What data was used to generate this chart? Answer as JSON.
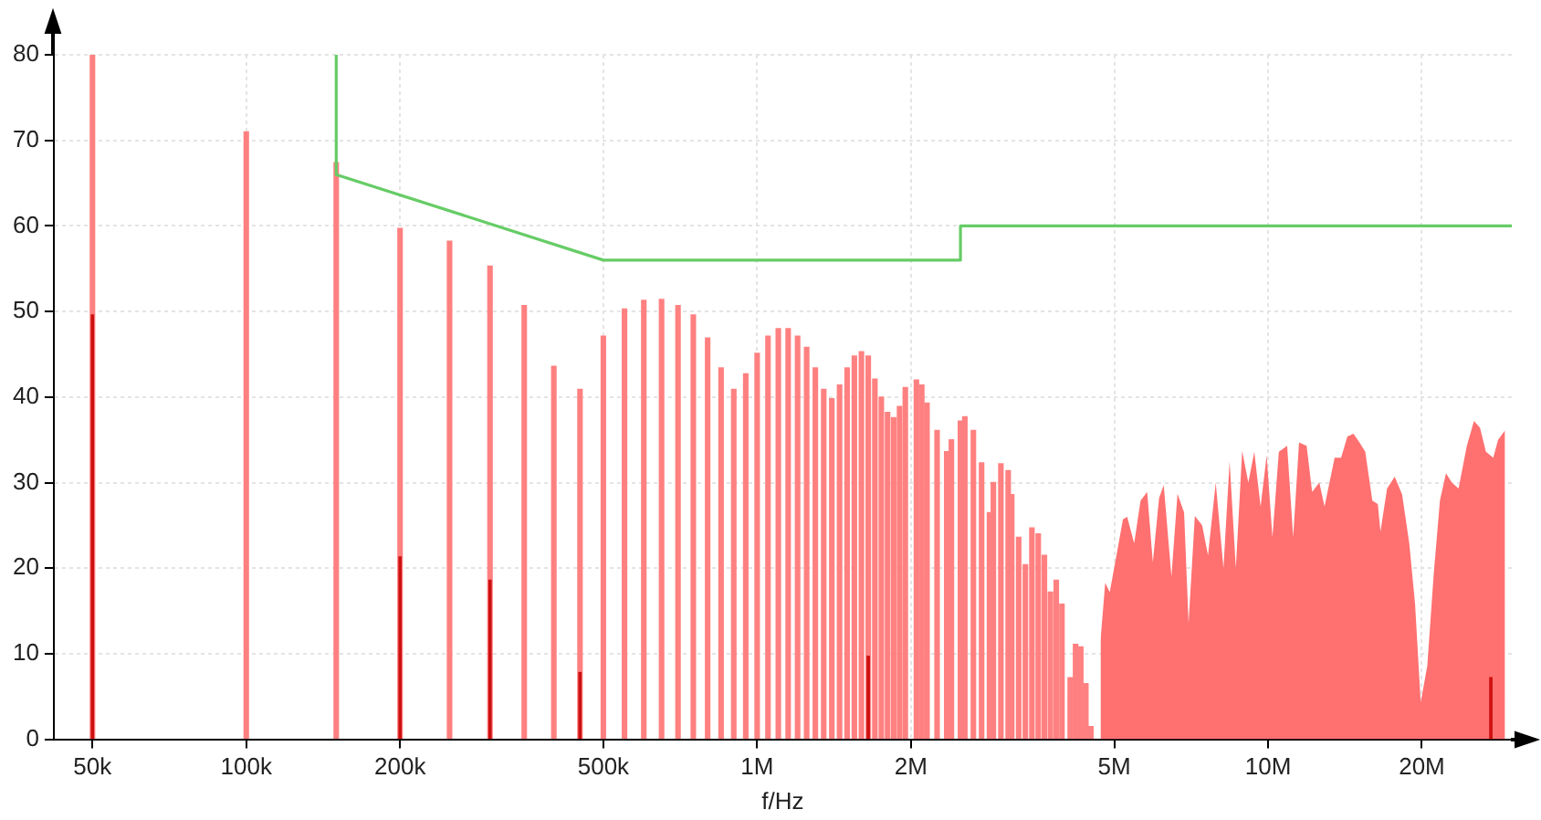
{
  "chart_data": {
    "type": "bar",
    "xlabel": "f/Hz",
    "log": "x",
    "xlim": [
      42000,
      30000000
    ],
    "xticks": [
      {
        "value": 50000,
        "label": "50k"
      },
      {
        "value": 100000,
        "label": "100k"
      },
      {
        "value": 200000,
        "label": "200k"
      },
      {
        "value": 500000,
        "label": "500k"
      },
      {
        "value": 1000000,
        "label": "1M"
      },
      {
        "value": 2000000,
        "label": "2M"
      },
      {
        "value": 5000000,
        "label": "5M"
      },
      {
        "value": 10000000,
        "label": "10M"
      },
      {
        "value": 20000000,
        "label": "20M"
      }
    ],
    "ylim": [
      0,
      80
    ],
    "yticks": [
      0,
      10,
      20,
      30,
      40,
      50,
      60,
      70,
      80
    ],
    "grid": true,
    "legend": false,
    "series": [
      {
        "color": "#ff8080",
        "x": [
          50000,
          100000,
          150000,
          200000,
          250000,
          300000,
          350000,
          400000,
          450000,
          500000,
          550000,
          600000,
          650000,
          700000,
          750000,
          800000,
          850000,
          900000,
          950000,
          1000000,
          1050000,
          1100000,
          1150000,
          1200000,
          1250000,
          1300000,
          1350000,
          1400000,
          1450000,
          1500000,
          1550000,
          1600000,
          1650000,
          1700000,
          1750000,
          1800000,
          1850000,
          1900000,
          1950000,
          2050000,
          2100000,
          2150000,
          2250000,
          2350000,
          2400000,
          2500000,
          2550000,
          2650000,
          2750000,
          2850000,
          2900000,
          3000000,
          3100000,
          3150000,
          3250000,
          3350000,
          3450000,
          3550000,
          3650000,
          3750000,
          3850000,
          3950000,
          4100000,
          4200000,
          4300000,
          4400000,
          4500000
        ],
        "values": [
          80,
          71,
          67.4,
          59.7,
          58.2,
          55.3,
          50.7,
          43.6,
          40.9,
          47.1,
          50.3,
          51.3,
          51.4,
          50.7,
          49.6,
          46.9,
          43.4,
          40.9,
          42.7,
          45.1,
          47.1,
          48,
          48,
          47.1,
          45.8,
          43.4,
          40.9,
          39.8,
          41.4,
          43.4,
          44.8,
          45.3,
          44.8,
          42.1,
          40,
          38.2,
          37.6,
          38.9,
          41.1,
          42,
          41.4,
          39.3,
          36.1,
          33.6,
          35,
          37.2,
          37.7,
          36.1,
          32.3,
          26.5,
          30,
          32.2,
          31.4,
          28.6,
          23.6,
          20.4,
          24.7,
          24,
          21.5,
          17.2,
          18.6,
          15.8,
          7.2,
          11.1,
          10.8,
          6.5,
          1.5
        ]
      },
      {
        "type": "area",
        "color": "#ff7070",
        "x": [
          4700000,
          4800000,
          4900000,
          5100000,
          5200000,
          5300000,
          5470000,
          5630000,
          5800000,
          5950000,
          6120000,
          6250000,
          6470000,
          6650000,
          6850000,
          6990000,
          7190000,
          7430000,
          7630000,
          7900000,
          8180000,
          8410000,
          8650000,
          8900000,
          9150000,
          9400000,
          9670000,
          9940000,
          10200000,
          10500000,
          10900000,
          11200000,
          11500000,
          11900000,
          12200000,
          12600000,
          12900000,
          13500000,
          13900000,
          14300000,
          14700000,
          15100000,
          15500000,
          16000000,
          16400000,
          16600000,
          17100000,
          17700000,
          18300000,
          18900000,
          19400000,
          19900000,
          20500000,
          21100000,
          21700000,
          22300000,
          22900000,
          23600000,
          24500000,
          25300000,
          26000000,
          26700000,
          27600000,
          28200000,
          29100000
        ],
        "values": [
          11.5,
          18.3,
          17.2,
          22.9,
          25.7,
          26,
          22.9,
          27.9,
          28.9,
          20.7,
          28.2,
          29.7,
          19,
          28.7,
          26.5,
          13.6,
          26.1,
          25,
          21.5,
          30,
          20,
          32.5,
          20,
          33.7,
          30,
          33.6,
          27.2,
          33.2,
          23.6,
          33.6,
          34.3,
          23.6,
          34.7,
          34.3,
          28.9,
          30,
          27.2,
          32.9,
          32.9,
          35.4,
          35.7,
          34.7,
          33.6,
          27.9,
          27.5,
          24.3,
          29.3,
          30.7,
          28.6,
          22.9,
          15.8,
          4.3,
          8.6,
          19.3,
          27.9,
          31.1,
          30,
          29.3,
          34.3,
          37.2,
          36.4,
          33.6,
          32.9,
          35,
          36.1
        ]
      },
      {
        "color": "#cc1010",
        "x": [
          50000,
          200000,
          300000,
          450000,
          1650000,
          27300000
        ],
        "values": [
          49.6,
          21.3,
          18.6,
          7.8,
          9.7,
          7.2
        ]
      },
      {
        "type": "line",
        "color": "#66cc66",
        "x": [
          150000,
          150000,
          500000,
          2500000,
          2500000,
          30000000
        ],
        "values": [
          80,
          66,
          56,
          56,
          60,
          60
        ]
      }
    ]
  }
}
